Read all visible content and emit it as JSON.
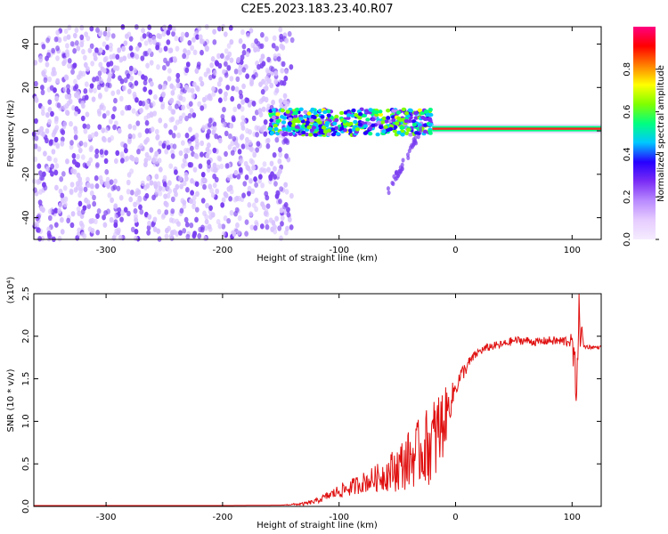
{
  "title": "C2E5.2023.183.23.40.R07",
  "colors": {
    "snr_line": "#e01010",
    "axis": "#000000",
    "background": "#ffffff",
    "noise_purple": "#7a3ff0",
    "noise_purple_light": "#d9c4ff"
  },
  "chart_data": [
    {
      "type": "heatmap",
      "name": "spectrogram",
      "title": "C2E5.2023.183.23.40.R07",
      "xlabel": "Height of straight line (km)",
      "ylabel": "Frequency (Hz)",
      "xlim": [
        -362,
        125
      ],
      "ylim": [
        -50,
        48
      ],
      "xticks": [
        -300,
        -200,
        -100,
        0,
        100
      ],
      "yticks": [
        -40,
        -20,
        0,
        20,
        40
      ],
      "grid": false,
      "regions": [
        {
          "kind": "noise",
          "x_range": [
            -362,
            -140
          ],
          "y_range": [
            -50,
            48
          ],
          "amplitude": [
            0.05,
            0.3
          ]
        },
        {
          "kind": "turbulent_band",
          "x_range": [
            -160,
            -20
          ],
          "y_range": [
            -2,
            10
          ],
          "amplitude": [
            0.2,
            0.7
          ]
        },
        {
          "kind": "tail",
          "x_range": [
            -60,
            -30
          ],
          "y_range": [
            -30,
            0
          ],
          "amplitude": [
            0.05,
            0.2
          ]
        },
        {
          "kind": "coherent_line",
          "x_range": [
            -20,
            125
          ],
          "y_center": 1,
          "amplitude": [
            0.7,
            1.0
          ]
        }
      ],
      "colorbar": {
        "label": "Normalized spectral amplitude",
        "range": [
          0.0,
          1.0
        ],
        "ticks": [
          "0.0",
          "0.2",
          "0.4",
          "0.6",
          "0.8"
        ],
        "tick_values": [
          0.0,
          0.2,
          0.4,
          0.6,
          0.8
        ],
        "colormap": [
          "#f5ecff",
          "#e6ccff",
          "#b98aff",
          "#7b2df5",
          "#2600ff",
          "#00c8ff",
          "#00ff80",
          "#80ff00",
          "#ffff00",
          "#ff8000",
          "#ff0000",
          "#ff0080"
        ]
      }
    },
    {
      "type": "line",
      "name": "snr",
      "xlabel": "Height of straight line (km)",
      "ylabel": "SNR (10 * v/v)",
      "y_multiplier": "(x10⁴)",
      "xlim": [
        -362,
        125
      ],
      "ylim": [
        0,
        2.5
      ],
      "xticks": [
        -300,
        -200,
        -100,
        0,
        100
      ],
      "yticks": [
        0.0,
        0.5,
        1.0,
        1.5,
        2.0,
        2.5
      ],
      "ytick_labels": [
        "0.0",
        "0.5",
        "1.0",
        "1.5",
        "2.0",
        "2.5"
      ],
      "grid": false,
      "series": [
        {
          "color": "#e01010",
          "x": [
            -362,
            -300,
            -250,
            -200,
            -150,
            -130,
            -120,
            -110,
            -100,
            -90,
            -80,
            -70,
            -60,
            -50,
            -40,
            -30,
            -20,
            -15,
            -10,
            -5,
            0,
            5,
            10,
            15,
            20,
            25,
            30,
            40,
            50,
            60,
            70,
            80,
            90,
            100,
            103,
            106,
            110,
            120,
            125
          ],
          "y": [
            0.01,
            0.01,
            0.01,
            0.01,
            0.015,
            0.03,
            0.06,
            0.12,
            0.18,
            0.22,
            0.28,
            0.32,
            0.38,
            0.45,
            0.55,
            0.65,
            0.75,
            0.85,
            1.0,
            1.2,
            1.4,
            1.55,
            1.65,
            1.75,
            1.82,
            1.85,
            1.88,
            1.9,
            1.95,
            1.95,
            1.93,
            1.95,
            1.94,
            1.95,
            1.4,
            2.2,
            1.88,
            1.87,
            1.87
          ],
          "fluctuation": [
            0,
            0,
            0,
            0,
            0,
            0.02,
            0.03,
            0.05,
            0.08,
            0.1,
            0.12,
            0.15,
            0.2,
            0.28,
            0.35,
            0.4,
            0.5,
            0.55,
            0.4,
            0.2,
            0.12,
            0.1,
            0.08,
            0.06,
            0.05,
            0.05,
            0.05,
            0.05,
            0.05,
            0.05,
            0.05,
            0.05,
            0.06,
            0.08,
            0.4,
            0.35,
            0.03,
            0.02,
            0.02
          ]
        }
      ]
    }
  ]
}
